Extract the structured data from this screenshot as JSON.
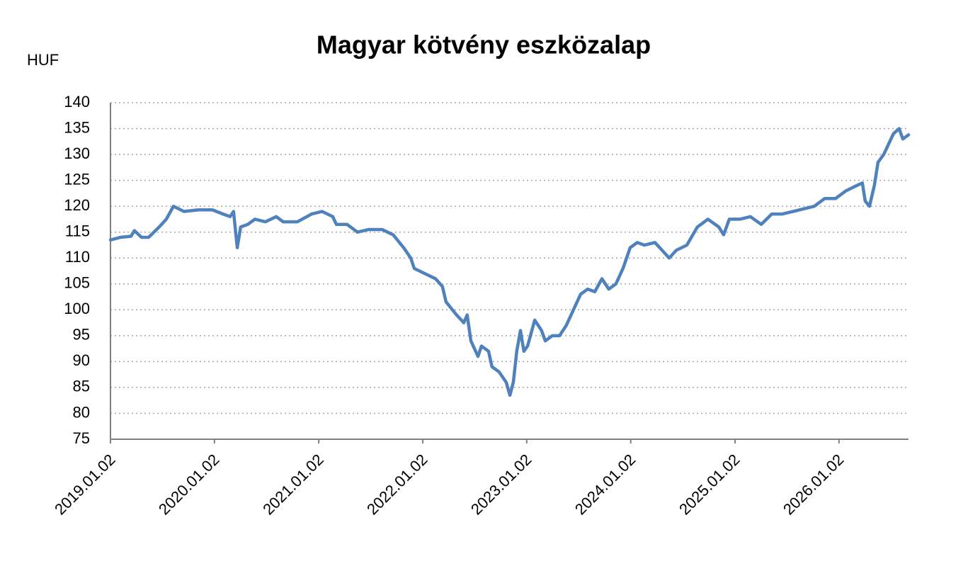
{
  "chart_data": {
    "type": "line",
    "title": "Magyar kötvény eszközalap",
    "y_label": "HUF",
    "x": [
      "2019.01.02",
      "2019.02.06",
      "2019.03.15",
      "2019.03.27",
      "2019.04.21",
      "2019.05.16",
      "2019.06.22",
      "2019.07.17",
      "2019.08.11",
      "2019.09.17",
      "2019.11.06",
      "2019.12.26",
      "2020.02.01",
      "2020.02.26",
      "2020.03.09",
      "2020.03.22",
      "2020.04.03",
      "2020.04.28",
      "2020.05.23",
      "2020.06.29",
      "2020.08.06",
      "2020.08.30",
      "2020.10.19",
      "2020.12.08",
      "2021.01.14",
      "2021.02.20",
      "2021.03.05",
      "2021.04.11",
      "2021.05.18",
      "2021.06.25",
      "2021.08.13",
      "2021.09.20",
      "2021.10.27",
      "2021.11.21",
      "2021.12.03",
      "2022.01.09",
      "2022.02.16",
      "2022.03.12",
      "2022.03.25",
      "2022.05.01",
      "2022.05.26",
      "2022.06.07",
      "2022.06.20",
      "2022.07.15",
      "2022.07.27",
      "2022.08.21",
      "2022.09.02",
      "2022.09.27",
      "2022.10.22",
      "2022.11.04",
      "2022.11.16",
      "2022.11.28",
      "2022.12.11",
      "2022.12.23",
      "2023.01.05",
      "2023.01.30",
      "2023.02.23",
      "2023.03.08",
      "2023.04.02",
      "2023.04.27",
      "2023.05.21",
      "2023.06.15",
      "2023.07.10",
      "2023.08.04",
      "2023.08.29",
      "2023.09.23",
      "2023.10.17",
      "2023.11.11",
      "2023.12.06",
      "2023.12.31",
      "2024.01.25",
      "2024.02.19",
      "2024.03.27",
      "2024.04.21",
      "2024.05.16",
      "2024.06.10",
      "2024.07.17",
      "2024.08.23",
      "2024.09.29",
      "2024.11.06",
      "2024.11.23",
      "2024.12.13",
      "2025.01.19",
      "2025.02.25",
      "2025.04.04",
      "2025.05.11",
      "2025.06.17",
      "2025.07.25",
      "2025.08.31",
      "2025.10.07",
      "2025.11.13",
      "2025.12.21",
      "2026.01.27",
      "2026.03.05",
      "2026.03.25",
      "2026.04.04",
      "2026.04.19",
      "2026.05.06",
      "2026.05.19",
      "2026.06.08",
      "2026.06.25",
      "2026.07.12",
      "2026.08.01",
      "2026.08.14",
      "2026.09.03"
    ],
    "series": [
      {
        "name": "Magyar kötvény eszközalap",
        "color": "#4f81bd",
        "values": [
          113.5,
          114,
          114.2,
          115.3,
          114,
          114,
          116,
          117.5,
          120,
          119,
          119.3,
          119.3,
          118.5,
          118,
          119,
          112,
          116,
          116.5,
          117.5,
          117,
          118,
          117,
          117,
          118.5,
          119,
          118,
          116.5,
          116.5,
          115,
          115.5,
          115.5,
          114.5,
          112,
          110,
          108,
          107,
          106,
          104.5,
          101.5,
          99,
          97.5,
          99,
          94,
          91,
          93,
          92,
          89,
          88,
          86,
          83.5,
          86,
          92,
          96,
          92,
          93,
          98,
          96,
          94,
          95,
          95,
          97,
          100,
          103,
          104,
          103.5,
          106,
          104,
          105,
          108,
          112,
          113,
          112.5,
          113,
          111.5,
          110,
          111.5,
          112.5,
          116,
          117.5,
          116,
          114.5,
          117.5,
          117.5,
          118,
          116.5,
          118.5,
          118.5,
          119,
          119.5,
          120,
          121.5,
          121.5,
          123,
          124,
          124.5,
          121,
          120,
          124,
          128.5,
          130,
          132,
          134,
          135,
          133,
          133.8
        ]
      }
    ],
    "xlim": [
      "2019.01.02",
      "2026.09.03"
    ],
    "xticks": [
      "2019.01.02",
      "2020.01.02",
      "2021.01.02",
      "2022.01.02",
      "2023.01.02",
      "2024.01.02",
      "2025.01.02",
      "2026.01.02"
    ],
    "ylim": [
      75,
      140
    ],
    "yticks": [
      75,
      80,
      85,
      90,
      95,
      100,
      105,
      110,
      115,
      120,
      125,
      130,
      135,
      140
    ],
    "grid": true
  }
}
